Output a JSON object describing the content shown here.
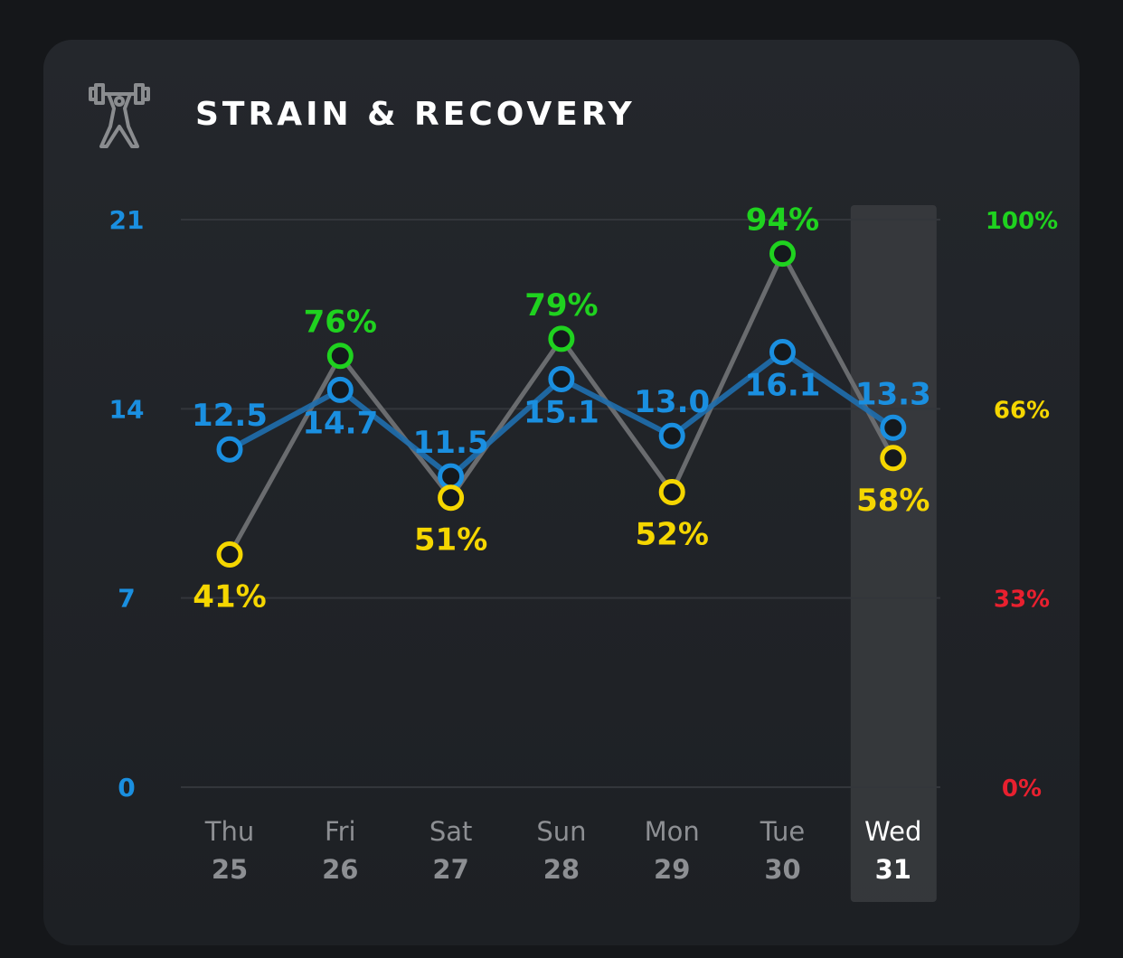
{
  "header": {
    "title": "STRAIN & RECOVERY",
    "icon": "weightlifter-icon"
  },
  "colors": {
    "strain": "#1a8fe0",
    "recovery_green": "#1fd21f",
    "recovery_yellow": "#f5d600",
    "recovery_red": "#e8202f",
    "line_gray": "#6a6c6f"
  },
  "chart_data": {
    "type": "line",
    "title": "STRAIN & RECOVERY",
    "categories": [
      {
        "day": "Thu",
        "date": "25"
      },
      {
        "day": "Fri",
        "date": "26"
      },
      {
        "day": "Sat",
        "date": "27"
      },
      {
        "day": "Sun",
        "date": "28"
      },
      {
        "day": "Mon",
        "date": "29"
      },
      {
        "day": "Tue",
        "date": "30"
      },
      {
        "day": "Wed",
        "date": "31"
      }
    ],
    "highlighted_index": 6,
    "series": [
      {
        "name": "Strain",
        "axis": "left",
        "values": [
          12.5,
          14.7,
          11.5,
          15.1,
          13.0,
          16.1,
          13.3
        ],
        "labels": [
          "12.5",
          "14.7",
          "11.5",
          "15.1",
          "13.0",
          "16.1",
          "13.3"
        ]
      },
      {
        "name": "Recovery",
        "axis": "right",
        "values": [
          41,
          76,
          51,
          79,
          52,
          94,
          58
        ],
        "labels": [
          "41%",
          "76%",
          "51%",
          "79%",
          "52%",
          "94%",
          "58%"
        ]
      }
    ],
    "left_axis": {
      "range": [
        0,
        21
      ],
      "ticks": [
        "21",
        "14",
        "7",
        "0"
      ],
      "tick_values": [
        21,
        14,
        7,
        0
      ]
    },
    "right_axis": {
      "range": [
        0,
        100
      ],
      "ticks": [
        "100%",
        "66%",
        "33%",
        "0%"
      ],
      "tick_colors": [
        "#1fd21f",
        "#f5d600",
        "#e8202f",
        "#e8202f"
      ]
    },
    "grid": true
  }
}
